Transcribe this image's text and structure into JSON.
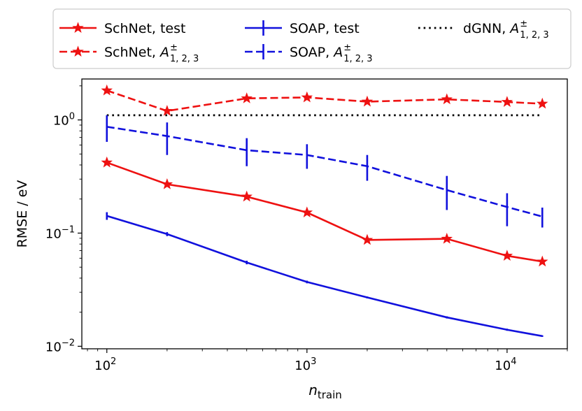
{
  "chart_data": {
    "type": "line",
    "xlabel": "n",
    "xlabel_sub": "train",
    "ylabel": "RMSE / eV",
    "xscale": "log",
    "yscale": "log",
    "xlim": [
      75,
      20000
    ],
    "ylim": [
      0.0095,
      2.3
    ],
    "x_ticks": [
      {
        "value": 100,
        "base": "10",
        "exp": "2"
      },
      {
        "value": 1000,
        "base": "10",
        "exp": "3"
      },
      {
        "value": 10000,
        "base": "10",
        "exp": "4"
      }
    ],
    "y_ticks": [
      {
        "value": 1,
        "base": "10",
        "exp": "0"
      },
      {
        "value": 0.1,
        "base": "10",
        "exp": "−1"
      },
      {
        "value": 0.01,
        "base": "10",
        "exp": "−2"
      }
    ],
    "legend_position": "top (above plot)",
    "series": [
      {
        "name": "SchNet, test",
        "color": "#ee1111",
        "style": "solid",
        "marker": "star",
        "x": [
          100,
          200,
          500,
          1000,
          2000,
          5000,
          10000,
          15000
        ],
        "y": [
          0.42,
          0.27,
          0.21,
          0.152,
          0.087,
          0.089,
          0.063,
          0.056
        ]
      },
      {
        "name": "SchNet, A",
        "name_sup": "±",
        "name_sub": "1, 2, 3",
        "color": "#ee1111",
        "style": "dashed",
        "marker": "star",
        "x": [
          100,
          200,
          500,
          1000,
          2000,
          5000,
          10000,
          15000
        ],
        "y": [
          1.82,
          1.2,
          1.55,
          1.58,
          1.45,
          1.52,
          1.44,
          1.39
        ]
      },
      {
        "name": "SOAP, test",
        "color": "#1111dd",
        "style": "solid",
        "marker": "errorbar",
        "x": [
          100,
          200,
          500,
          1000,
          2000,
          5000,
          10000,
          15000
        ],
        "y": [
          0.142,
          0.098,
          0.055,
          0.037,
          0.027,
          0.018,
          0.014,
          0.0123
        ],
        "err": [
          0.011,
          0.004,
          0.002,
          0.001,
          0.0005,
          0.0004,
          0.0003,
          0.0002
        ]
      },
      {
        "name": "SOAP, A",
        "name_sup": "±",
        "name_sub": "1, 2, 3",
        "color": "#1111dd",
        "style": "dashed",
        "marker": "errorbar",
        "x": [
          100,
          200,
          500,
          1000,
          2000,
          5000,
          10000,
          15000
        ],
        "y": [
          0.87,
          0.72,
          0.54,
          0.49,
          0.39,
          0.24,
          0.17,
          0.14
        ],
        "err": [
          0.23,
          0.23,
          0.15,
          0.12,
          0.1,
          0.08,
          0.055,
          0.028
        ]
      },
      {
        "name": "dGNN, A",
        "name_sup": "±",
        "name_sub": "1, 2, 3",
        "color": "#000000",
        "style": "dotted",
        "marker": "none",
        "x": [
          100,
          15000
        ],
        "y": [
          1.1,
          1.1
        ]
      }
    ]
  }
}
